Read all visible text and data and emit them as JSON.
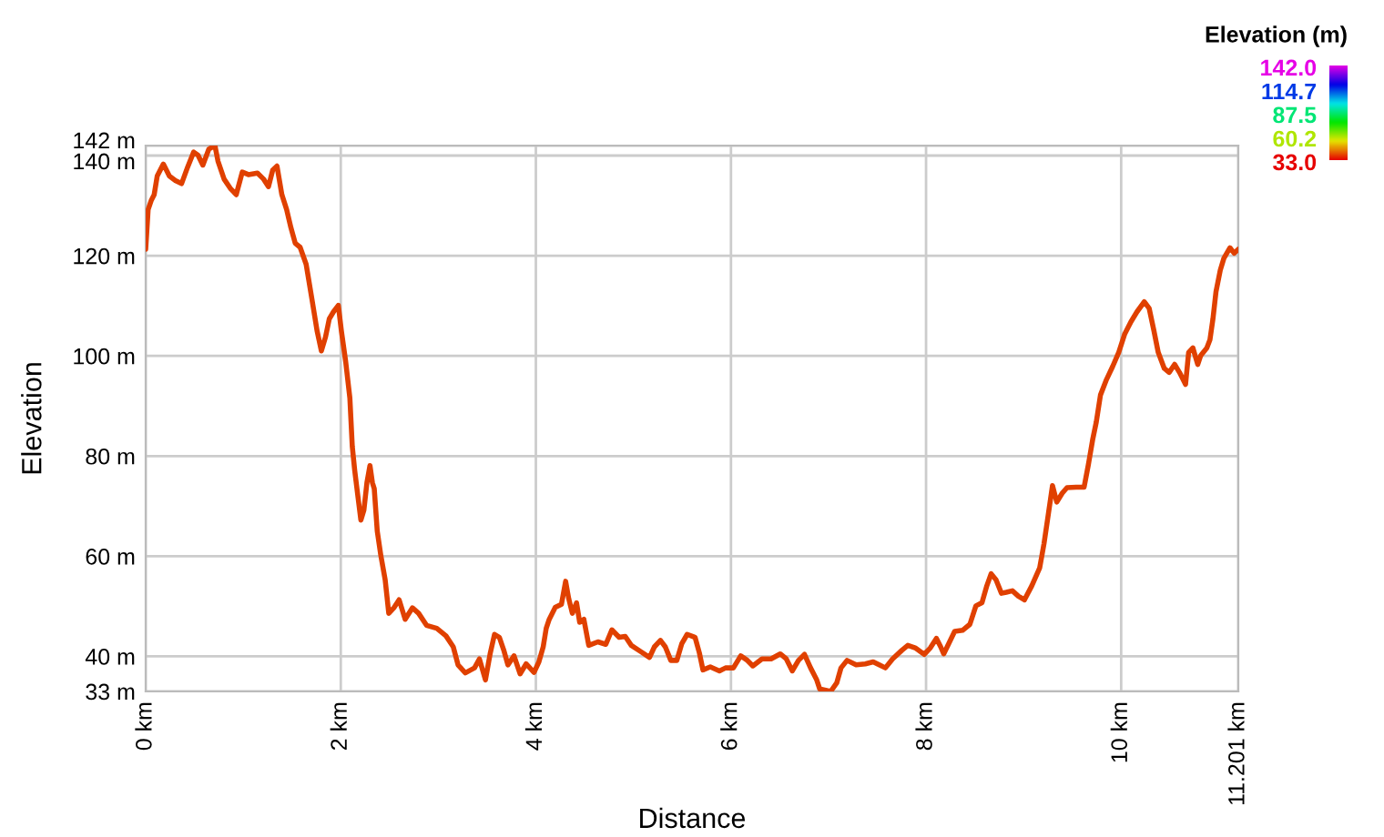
{
  "chart_data": {
    "type": "line",
    "xlabel": "Distance",
    "ylabel": "Elevation",
    "clabel": "Elevation (m)",
    "color": "#e04000",
    "x": [
      0,
      0.025,
      0.056,
      0.087,
      0.118,
      0.181,
      0.243,
      0.305,
      0.368,
      0.43,
      0.492,
      0.536,
      0.586,
      0.648,
      0.71,
      0.741,
      0.804,
      0.866,
      0.928,
      0.99,
      1.053,
      1.146,
      1.209,
      1.259,
      1.302,
      1.346,
      1.396,
      1.445,
      1.489,
      1.533,
      1.583,
      1.645,
      1.707,
      1.757,
      1.801,
      1.844,
      1.882,
      1.925,
      1.975,
      2.006,
      2.05,
      2.093,
      2.118,
      2.143,
      2.174,
      2.206,
      2.237,
      2.268,
      2.299,
      2.324,
      2.343,
      2.374,
      2.411,
      2.455,
      2.492,
      2.548,
      2.598,
      2.66,
      2.735,
      2.798,
      2.879,
      2.984,
      3.078,
      3.153,
      3.202,
      3.277,
      3.371,
      3.421,
      3.483,
      3.533,
      3.576,
      3.626,
      3.67,
      3.713,
      3.776,
      3.838,
      3.9,
      3.981,
      4.031,
      4.075,
      4.106,
      4.137,
      4.199,
      4.262,
      4.305,
      4.336,
      4.374,
      4.417,
      4.449,
      4.492,
      4.542,
      4.636,
      4.717,
      4.779,
      4.854,
      4.916,
      4.978,
      5.072,
      5.165,
      5.215,
      5.277,
      5.327,
      5.383,
      5.445,
      5.495,
      5.551,
      5.632,
      5.676,
      5.713,
      5.788,
      5.882,
      5.944,
      6.025,
      6.1,
      6.162,
      6.224,
      6.318,
      6.411,
      6.505,
      6.567,
      6.629,
      6.692,
      6.754,
      6.816,
      6.879,
      6.91,
      7.022,
      7.084,
      7.128,
      7.19,
      7.283,
      7.377,
      7.458,
      7.52,
      7.583,
      7.657,
      7.751,
      7.813,
      7.888,
      7.981,
      8.044,
      8.106,
      8.15,
      8.181,
      8.231,
      8.293,
      8.374,
      8.449,
      8.511,
      8.573,
      8.623,
      8.667,
      8.717,
      8.773,
      8.822,
      8.885,
      8.947,
      9.009,
      9.084,
      9.165,
      9.209,
      9.246,
      9.296,
      9.34,
      9.396,
      9.445,
      9.539,
      9.62,
      9.664,
      9.707,
      9.745,
      9.788,
      9.85,
      9.913,
      9.975,
      10.037,
      10.1,
      10.162,
      10.237,
      10.287,
      10.336,
      10.38,
      10.442,
      10.492,
      10.548,
      10.598,
      10.66,
      10.692,
      10.735,
      10.785,
      10.816,
      10.878,
      10.91,
      10.941,
      10.972,
      11.016,
      11.053,
      11.115,
      11.159,
      11.201
    ],
    "values": [
      121.3,
      129.2,
      131.0,
      132.2,
      135.9,
      138.3,
      135.9,
      135.0,
      134.4,
      137.7,
      140.7,
      140.1,
      138.1,
      141.3,
      142.0,
      138.9,
      135.3,
      133.5,
      132.2,
      136.7,
      136.2,
      136.5,
      135.3,
      133.8,
      137.1,
      137.9,
      132.2,
      129.2,
      125.6,
      122.5,
      121.7,
      118.3,
      111.0,
      105.0,
      101.0,
      103.8,
      107.4,
      108.8,
      110.1,
      105.0,
      98.9,
      91.6,
      81.9,
      77.1,
      72.2,
      67.2,
      69.2,
      74.7,
      78.1,
      74.7,
      73.5,
      65.0,
      60.1,
      55.3,
      48.6,
      49.8,
      51.3,
      47.4,
      49.7,
      48.6,
      46.2,
      45.6,
      44.1,
      41.9,
      38.3,
      36.7,
      37.7,
      39.5,
      35.3,
      40.7,
      44.4,
      43.8,
      41.3,
      38.3,
      40.1,
      36.5,
      38.5,
      36.8,
      38.9,
      41.9,
      45.6,
      47.4,
      49.8,
      50.4,
      55.0,
      51.6,
      48.6,
      50.7,
      46.8,
      47.4,
      42.2,
      42.9,
      42.4,
      45.3,
      43.8,
      44.0,
      42.2,
      41.0,
      39.8,
      41.9,
      43.2,
      41.9,
      39.2,
      39.2,
      42.5,
      44.4,
      43.8,
      40.7,
      37.3,
      37.9,
      37.1,
      37.7,
      37.7,
      40.1,
      39.3,
      38.1,
      39.5,
      39.5,
      40.5,
      39.5,
      37.1,
      39.2,
      40.4,
      37.7,
      35.3,
      33.5,
      33.0,
      34.7,
      37.7,
      39.2,
      38.3,
      38.5,
      38.9,
      38.3,
      37.7,
      39.5,
      41.2,
      42.2,
      41.7,
      40.4,
      41.7,
      43.6,
      41.9,
      40.5,
      42.5,
      45.0,
      45.2,
      46.4,
      50.1,
      50.7,
      54.1,
      56.5,
      55.3,
      52.6,
      52.8,
      53.1,
      52.0,
      51.3,
      54.1,
      57.7,
      62.5,
      67.4,
      74.1,
      70.8,
      72.6,
      73.7,
      73.8,
      73.8,
      78.3,
      83.2,
      86.8,
      92.2,
      95.3,
      97.9,
      100.7,
      104.4,
      106.8,
      108.8,
      110.8,
      109.5,
      105.0,
      100.7,
      97.5,
      96.7,
      98.3,
      96.7,
      94.3,
      100.7,
      101.6,
      98.3,
      100.1,
      101.6,
      103.2,
      107.4,
      112.8,
      117.1,
      119.5,
      121.6,
      120.5,
      121.3
    ],
    "xlim": [
      0,
      11.201
    ],
    "xticks": [
      {
        "value": 0,
        "label": "0 km"
      },
      {
        "value": 2,
        "label": "2 km"
      },
      {
        "value": 4,
        "label": "4 km"
      },
      {
        "value": 6,
        "label": "6 km"
      },
      {
        "value": 8,
        "label": "8 km"
      },
      {
        "value": 10,
        "label": "10 km"
      },
      {
        "value": 11.201,
        "label": "11.201 km"
      }
    ],
    "ylim": [
      33,
      142
    ],
    "yticks": [
      {
        "value": 33,
        "label": "33 m"
      },
      {
        "value": 40,
        "label": "40 m"
      },
      {
        "value": 60,
        "label": "60 m"
      },
      {
        "value": 80,
        "label": "80 m"
      },
      {
        "value": 100,
        "label": "100 m"
      },
      {
        "value": 120,
        "label": "120 m"
      },
      {
        "value": 140,
        "label": "140 m"
      },
      {
        "value": 142,
        "label": "142 m"
      }
    ],
    "clim": [
      33,
      142
    ],
    "cticks": [
      {
        "value": 33.0,
        "label": "33.0"
      },
      {
        "value": 60.2,
        "label": "60.2"
      },
      {
        "value": 87.5,
        "label": "87.5"
      },
      {
        "value": 114.7,
        "label": "114.7"
      },
      {
        "value": 142.0,
        "label": "142.0"
      }
    ],
    "grid": true
  }
}
